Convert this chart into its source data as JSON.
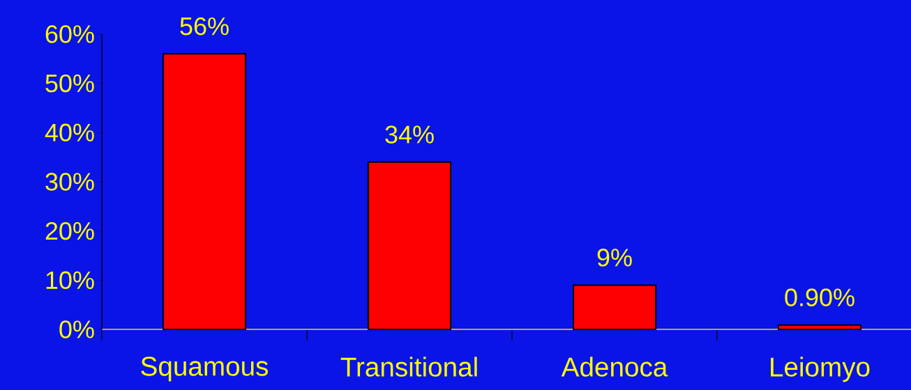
{
  "chart_data": {
    "type": "bar",
    "categories": [
      "Squamous",
      "Transitional",
      "Adenoca",
      "Leiomyo"
    ],
    "values": [
      56,
      34,
      9,
      0.9
    ],
    "value_labels": [
      "56%",
      "34%",
      "9%",
      "0.90%"
    ],
    "color": "#ff0000",
    "ylim": [
      0,
      60
    ],
    "yticks": [
      {
        "value": 0,
        "label": "0%"
      },
      {
        "value": 10,
        "label": "10%"
      },
      {
        "value": 20,
        "label": "20%"
      },
      {
        "value": 30,
        "label": "30%"
      },
      {
        "value": 40,
        "label": "40%"
      },
      {
        "value": 50,
        "label": "50%"
      },
      {
        "value": 60,
        "label": "60%"
      }
    ],
    "grid": false
  }
}
